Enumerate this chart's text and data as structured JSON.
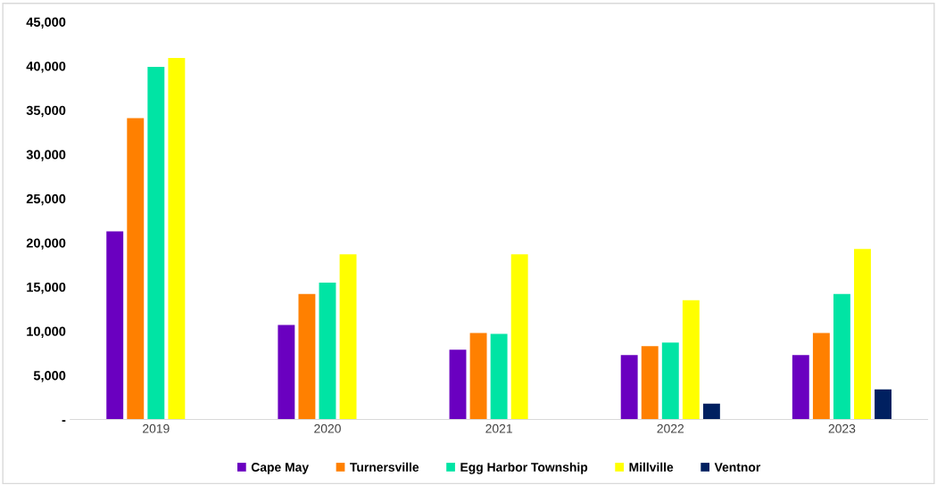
{
  "chart_data": {
    "type": "bar",
    "categories": [
      "2019",
      "2020",
      "2021",
      "2022",
      "2023"
    ],
    "series": [
      {
        "name": "Cape May",
        "color": "#6a00c0",
        "values": [
          21300,
          10700,
          7900,
          7300,
          7300
        ]
      },
      {
        "name": "Turnersville",
        "color": "#ff8000",
        "values": [
          34100,
          14200,
          9800,
          8300,
          9800
        ]
      },
      {
        "name": "Egg Harbor Township",
        "color": "#00e4a4",
        "values": [
          39900,
          15500,
          9700,
          8700,
          14200
        ]
      },
      {
        "name": "Millville",
        "color": "#ffff00",
        "values": [
          40900,
          18700,
          18700,
          13500,
          19300
        ]
      },
      {
        "name": "Ventnor",
        "color": "#002060",
        "values": [
          null,
          null,
          null,
          1800,
          3400
        ]
      }
    ],
    "ylim": [
      0,
      45000
    ],
    "yticks": [
      {
        "value": 0,
        "label": "-"
      },
      {
        "value": 5000,
        "label": "5,000"
      },
      {
        "value": 10000,
        "label": "10,000"
      },
      {
        "value": 15000,
        "label": "15,000"
      },
      {
        "value": 20000,
        "label": "20,000"
      },
      {
        "value": 25000,
        "label": "25,000"
      },
      {
        "value": 30000,
        "label": "30,000"
      },
      {
        "value": 35000,
        "label": "35,000"
      },
      {
        "value": 40000,
        "label": "40,000"
      },
      {
        "value": 45000,
        "label": "45,000"
      }
    ],
    "grid": false,
    "legend": "bottom"
  }
}
